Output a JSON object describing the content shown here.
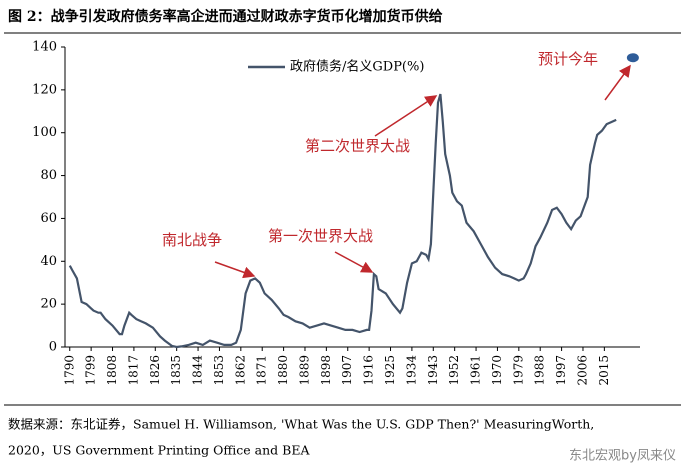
{
  "chart_data": {
    "type": "line",
    "title": "图 2：战争引发政府债务率高企进而通过财政赤字货币化增加货币供给",
    "x": [
      1790,
      1791,
      1793,
      1795,
      1797,
      1799,
      1800,
      1802,
      1803,
      1805,
      1808,
      1811,
      1812,
      1813,
      1815,
      1816,
      1818,
      1820,
      1822,
      1825,
      1828,
      1830,
      1833,
      1835,
      1837,
      1840,
      1843,
      1846,
      1849,
      1852,
      1855,
      1858,
      1860,
      1862,
      1864,
      1866,
      1868,
      1870,
      1872,
      1875,
      1878,
      1880,
      1882,
      1885,
      1888,
      1891,
      1894,
      1897,
      1900,
      1903,
      1906,
      1909,
      1912,
      1915,
      1916,
      1917,
      1918,
      1919,
      1920,
      1923,
      1926,
      1929,
      1930,
      1932,
      1934,
      1936,
      1938,
      1940,
      1941,
      1942,
      1943,
      1944,
      1945,
      1946,
      1947,
      1948,
      1950,
      1951,
      1953,
      1955,
      1957,
      1960,
      1963,
      1966,
      1969,
      1972,
      1975,
      1977,
      1979,
      1981,
      1982,
      1984,
      1986,
      1988,
      1991,
      1993,
      1995,
      1997,
      1999,
      2001,
      2003,
      2005,
      2008,
      2009,
      2011,
      2012,
      2014,
      2016,
      2018,
      2020
    ],
    "series": [
      {
        "name": "政府债务/名义GDP(%)",
        "color": "#44546a",
        "values": [
          38,
          36,
          32,
          21,
          20,
          18,
          17,
          16,
          16,
          13,
          10,
          6,
          6,
          10,
          16,
          15,
          13,
          12,
          11,
          9,
          5,
          3,
          0.5,
          0,
          0.3,
          1,
          2,
          1,
          3,
          2,
          1,
          1,
          2,
          8,
          25,
          31,
          32,
          30,
          25,
          22,
          18,
          15,
          14,
          12,
          11,
          9,
          10,
          11,
          10,
          9,
          8,
          8,
          7,
          8,
          8,
          17,
          34,
          33,
          27,
          25,
          20,
          16,
          18,
          30,
          39,
          40,
          44,
          43,
          41,
          48,
          72,
          95,
          114,
          118,
          105,
          90,
          80,
          72,
          68,
          66,
          58,
          54,
          48,
          42,
          37,
          34,
          33,
          32,
          31,
          32,
          34,
          39,
          47,
          51,
          58,
          64,
          65,
          62,
          58,
          55,
          59,
          61,
          70,
          85,
          95,
          99,
          101,
          104,
          105,
          106
        ]
      }
    ],
    "forecast": {
      "x": 2027,
      "value": 135,
      "color": "#2e5c99"
    },
    "xlim": [
      1788,
      2030
    ],
    "xticks": [
      1790,
      1799,
      1808,
      1817,
      1826,
      1835,
      1844,
      1853,
      1862,
      1871,
      1880,
      1889,
      1898,
      1907,
      1916,
      1925,
      1934,
      1943,
      1952,
      1961,
      1970,
      1979,
      1988,
      1997,
      2006,
      2015
    ],
    "ylim": [
      0,
      140
    ],
    "yticks": [
      0,
      20,
      40,
      60,
      80,
      100,
      120,
      140
    ],
    "annotations": [
      "南北战争",
      "第一次世界大战",
      "第二次世界大战",
      "预计今年"
    ],
    "annotation_color": "#c0282d",
    "source": [
      "数据来源：东北证券，Samuel H. Williamson, 'What Was the U.S. GDP Then?' MeasuringWorth,",
      "2020，US Government Printing Office and BEA"
    ],
    "watermark": "东北宏观by凤来仪"
  }
}
